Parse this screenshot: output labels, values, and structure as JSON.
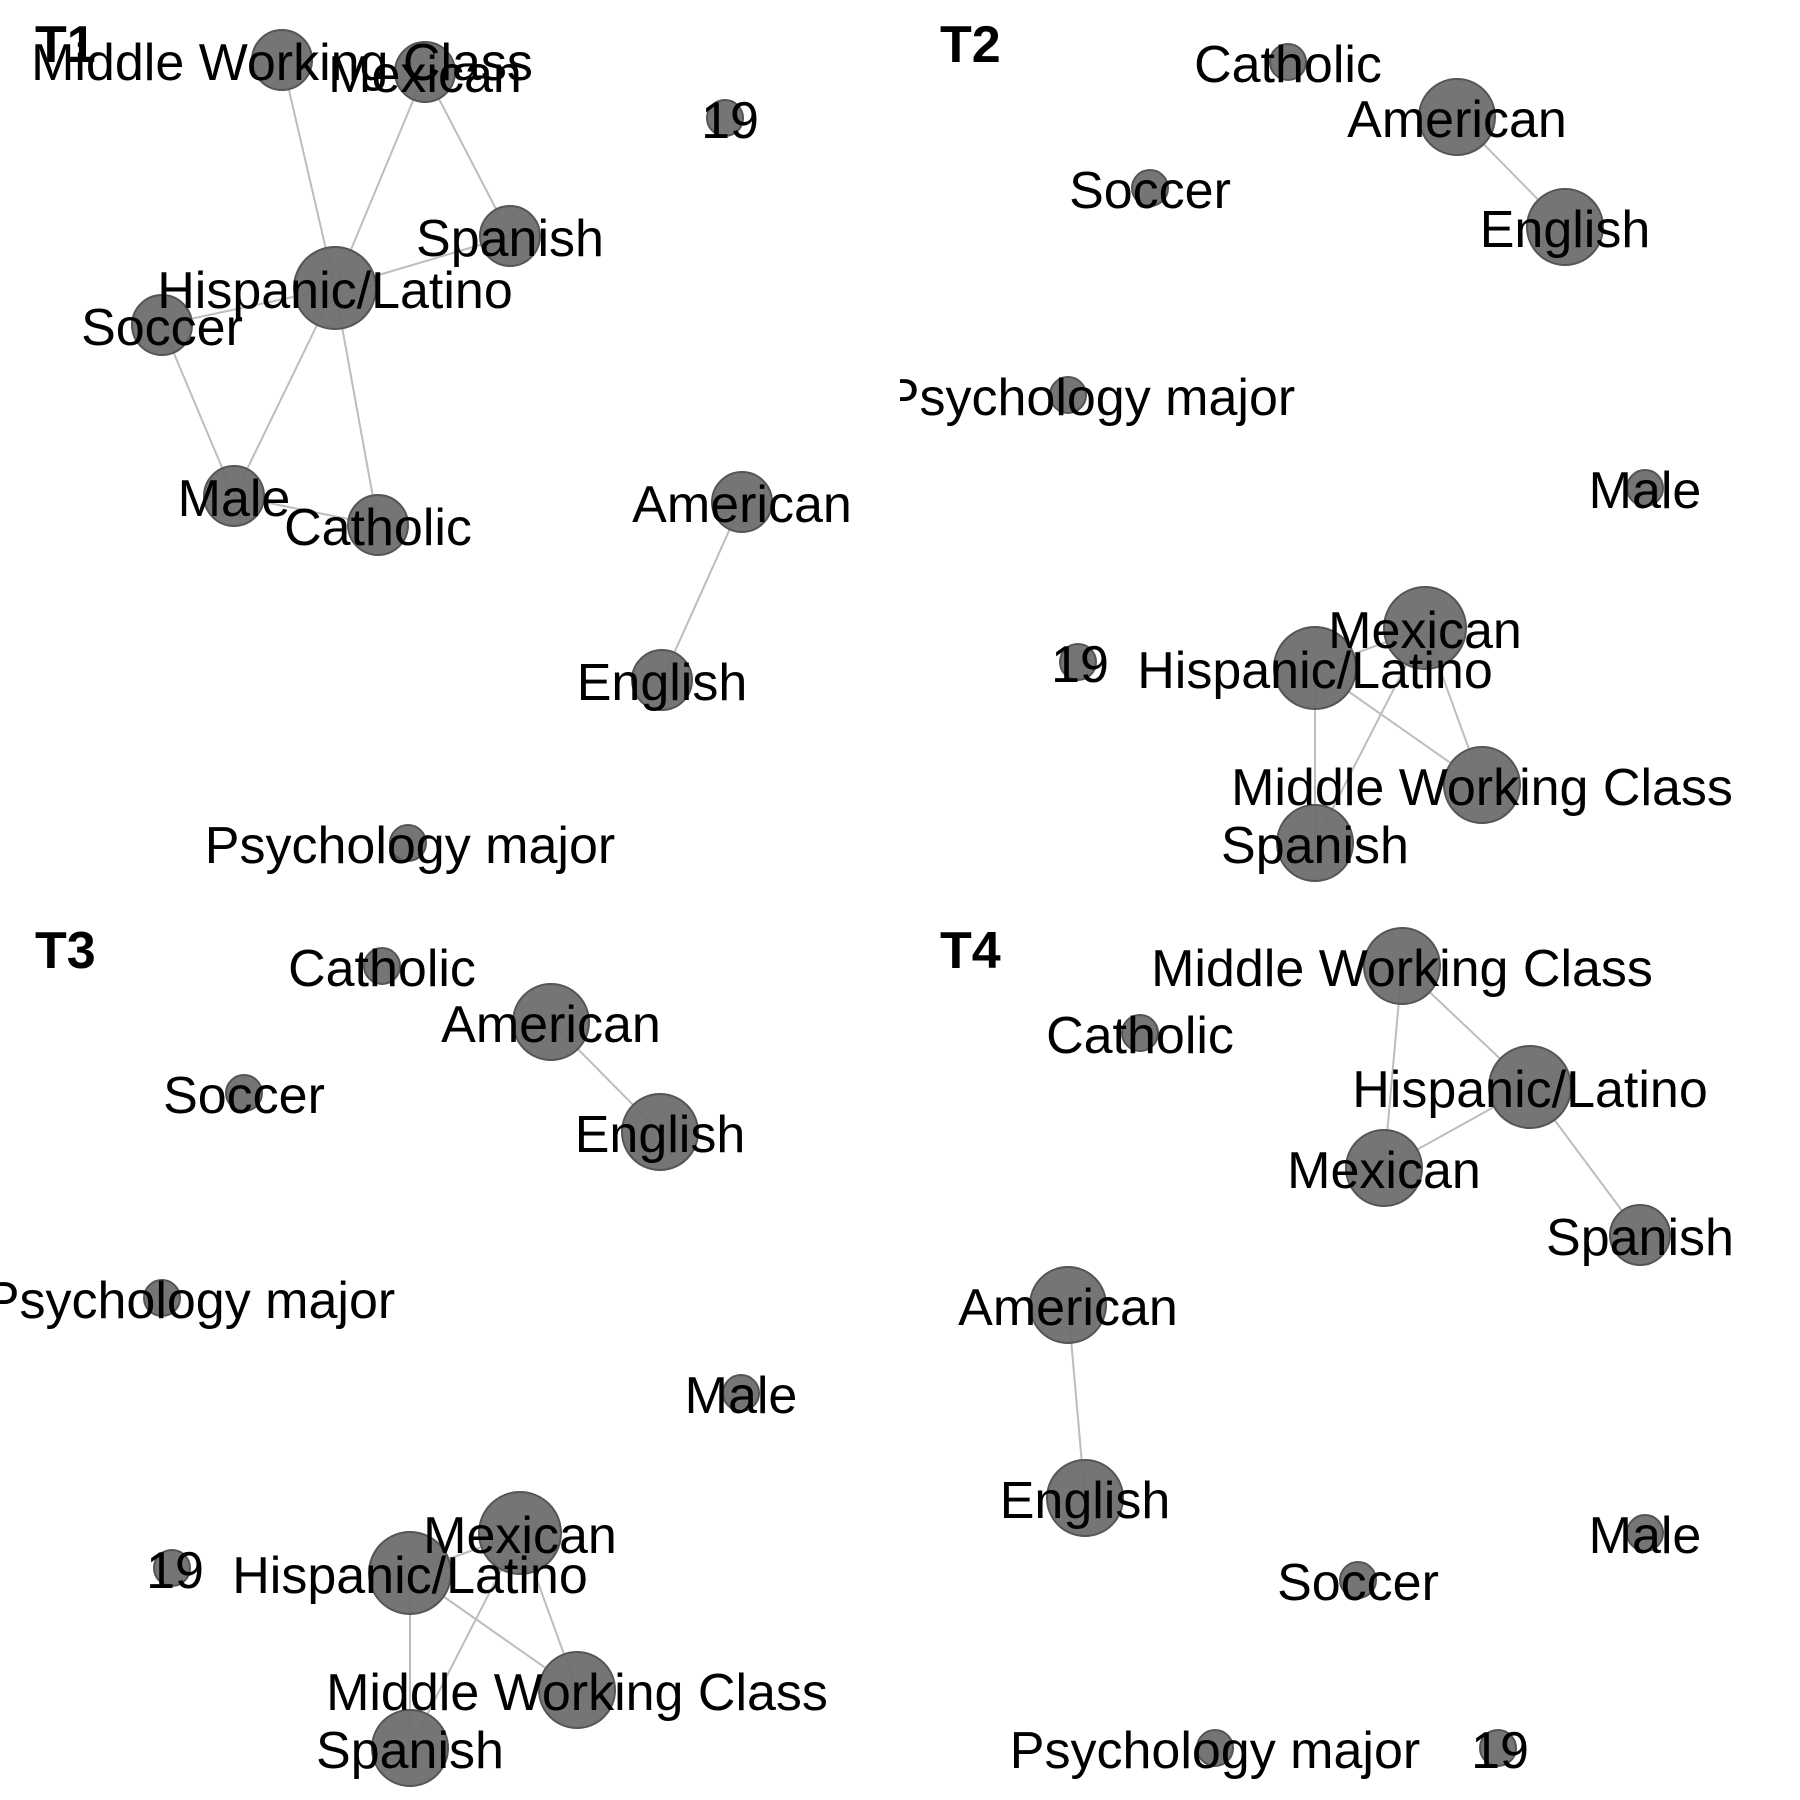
{
  "colors": {
    "node": "#6e6e6e",
    "edge": "#bdbdbd",
    "label": "#000000"
  },
  "panels": [
    {
      "title": "T1",
      "nodes": [
        {
          "id": "mwc",
          "label": "Middle Working Class",
          "size": "small"
        },
        {
          "id": "mexican",
          "label": "Mexican",
          "size": "small"
        },
        {
          "id": "n19",
          "label": "19",
          "size": "tiny"
        },
        {
          "id": "spanish",
          "label": "Spanish",
          "size": "small"
        },
        {
          "id": "hispanic",
          "label": "Hispanic/Latino",
          "size": "large"
        },
        {
          "id": "soccer",
          "label": "Soccer",
          "size": "small"
        },
        {
          "id": "male",
          "label": "Male",
          "size": "small"
        },
        {
          "id": "catholic",
          "label": "Catholic",
          "size": "small"
        },
        {
          "id": "american",
          "label": "American",
          "size": "small"
        },
        {
          "id": "english",
          "label": "English",
          "size": "small"
        },
        {
          "id": "psych",
          "label": "Psychology major",
          "size": "tiny"
        }
      ],
      "edges": [
        [
          "mwc",
          "hispanic"
        ],
        [
          "mexican",
          "hispanic"
        ],
        [
          "mexican",
          "spanish"
        ],
        [
          "spanish",
          "hispanic"
        ],
        [
          "soccer",
          "hispanic"
        ],
        [
          "soccer",
          "male"
        ],
        [
          "male",
          "hispanic"
        ],
        [
          "male",
          "catholic"
        ],
        [
          "hispanic",
          "catholic"
        ],
        [
          "american",
          "english"
        ]
      ]
    },
    {
      "title": "T2",
      "nodes": [
        {
          "id": "catholic",
          "label": "Catholic",
          "size": "tiny"
        },
        {
          "id": "american",
          "label": "American",
          "size": "medium"
        },
        {
          "id": "soccer",
          "label": "Soccer",
          "size": "tiny"
        },
        {
          "id": "english",
          "label": "English",
          "size": "medium"
        },
        {
          "id": "psych",
          "label": "Psychology major",
          "size": "tiny"
        },
        {
          "id": "male",
          "label": "Male",
          "size": "tiny"
        },
        {
          "id": "mexican",
          "label": "Mexican",
          "size": "large"
        },
        {
          "id": "n19",
          "label": "19",
          "size": "tiny"
        },
        {
          "id": "hispanic",
          "label": "Hispanic/Latino",
          "size": "large"
        },
        {
          "id": "mwc",
          "label": "Middle Working Class",
          "size": "medium"
        },
        {
          "id": "spanish",
          "label": "Spanish",
          "size": "medium"
        }
      ],
      "edges": [
        [
          "american",
          "english"
        ],
        [
          "hispanic",
          "mexican"
        ],
        [
          "hispanic",
          "mwc"
        ],
        [
          "hispanic",
          "spanish"
        ],
        [
          "mexican",
          "mwc"
        ],
        [
          "mexican",
          "spanish"
        ]
      ]
    },
    {
      "title": "T3",
      "nodes": [
        {
          "id": "catholic",
          "label": "Catholic",
          "size": "tiny"
        },
        {
          "id": "american",
          "label": "American",
          "size": "medium"
        },
        {
          "id": "soccer",
          "label": "Soccer",
          "size": "tiny"
        },
        {
          "id": "english",
          "label": "English",
          "size": "medium"
        },
        {
          "id": "psych",
          "label": "Psychology major",
          "size": "tiny"
        },
        {
          "id": "male",
          "label": "Male",
          "size": "tiny"
        },
        {
          "id": "mexican",
          "label": "Mexican",
          "size": "large"
        },
        {
          "id": "n19",
          "label": "19",
          "size": "tiny"
        },
        {
          "id": "hispanic",
          "label": "Hispanic/Latino",
          "size": "large"
        },
        {
          "id": "mwc",
          "label": "Middle Working Class",
          "size": "medium"
        },
        {
          "id": "spanish",
          "label": "Spanish",
          "size": "medium"
        }
      ],
      "edges": [
        [
          "american",
          "english"
        ],
        [
          "hispanic",
          "mexican"
        ],
        [
          "hispanic",
          "mwc"
        ],
        [
          "hispanic",
          "spanish"
        ],
        [
          "mexican",
          "mwc"
        ],
        [
          "mexican",
          "spanish"
        ]
      ]
    },
    {
      "title": "T4",
      "nodes": [
        {
          "id": "mwc",
          "label": "Middle Working Class",
          "size": "medium"
        },
        {
          "id": "catholic",
          "label": "Catholic",
          "size": "tiny"
        },
        {
          "id": "hispanic",
          "label": "Hispanic/Latino",
          "size": "large"
        },
        {
          "id": "mexican",
          "label": "Mexican",
          "size": "medium"
        },
        {
          "id": "spanish",
          "label": "Spanish",
          "size": "small"
        },
        {
          "id": "american",
          "label": "American",
          "size": "medium"
        },
        {
          "id": "english",
          "label": "English",
          "size": "medium"
        },
        {
          "id": "male",
          "label": "Male",
          "size": "tiny"
        },
        {
          "id": "soccer",
          "label": "Soccer",
          "size": "tiny"
        },
        {
          "id": "psych",
          "label": "Psychology major",
          "size": "tiny"
        },
        {
          "id": "n19",
          "label": "19",
          "size": "tiny"
        }
      ],
      "edges": [
        [
          "mwc",
          "hispanic"
        ],
        [
          "mwc",
          "mexican"
        ],
        [
          "hispanic",
          "mexican"
        ],
        [
          "hispanic",
          "spanish"
        ],
        [
          "american",
          "english"
        ]
      ]
    }
  ]
}
